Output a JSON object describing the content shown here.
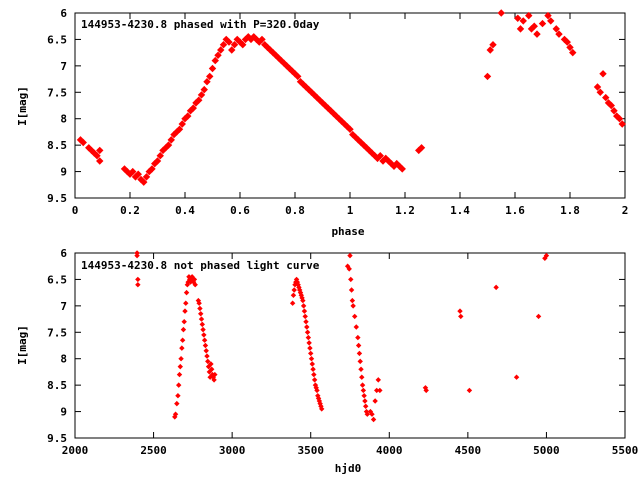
{
  "chart_data": [
    {
      "type": "scatter",
      "title": "144953-4230.8 phased with P=320.0day",
      "xlabel": "phase",
      "ylabel": "I[mag]",
      "xlim": [
        0,
        2
      ],
      "ylim": [
        9.5,
        6
      ],
      "y_inverted": true,
      "xticks": [
        "0",
        "0.2",
        "0.4",
        "0.6",
        "0.8",
        "1",
        "1.2",
        "1.4",
        "1.6",
        "1.8",
        "2"
      ],
      "yticks": [
        "6",
        "6.5",
        "7",
        "7.5",
        "8",
        "8.5",
        "9",
        "9.5"
      ],
      "grid": false,
      "marker_color": "#ff0000",
      "series": [
        {
          "x": [
            0.02,
            0.03,
            0.05,
            0.06,
            0.07,
            0.08,
            0.09,
            0.09,
            0.18,
            0.19,
            0.2,
            0.21,
            0.22,
            0.23,
            0.24,
            0.25,
            0.26,
            0.27,
            0.28,
            0.29,
            0.3,
            0.31,
            0.32,
            0.33,
            0.34,
            0.35,
            0.36,
            0.37,
            0.38,
            0.39,
            0.4,
            0.41,
            0.42,
            0.43,
            0.44,
            0.45,
            0.46,
            0.47,
            0.48,
            0.49,
            0.5,
            0.51,
            0.52,
            0.53,
            0.54,
            0.55,
            0.56,
            0.57,
            0.58,
            0.59,
            0.6,
            0.61,
            0.62,
            0.63,
            0.64,
            0.65,
            0.66,
            0.67,
            0.68,
            0.69,
            0.7,
            0.71,
            0.72,
            0.73,
            0.74,
            0.75,
            0.76,
            0.77,
            0.78,
            0.79,
            0.8,
            0.81,
            0.82,
            0.83,
            0.84,
            0.85,
            0.86,
            0.87,
            0.88,
            0.89,
            0.9,
            0.91,
            0.92,
            0.93,
            0.94,
            0.95,
            0.96,
            0.97,
            0.98,
            0.99,
            1.0,
            1.01,
            1.02,
            1.03,
            1.04,
            1.05,
            1.06,
            1.07,
            1.08,
            1.09,
            1.1,
            1.11,
            1.12,
            1.13,
            1.14,
            1.15,
            1.16,
            1.17,
            1.18,
            1.19,
            1.25,
            1.26,
            1.5,
            1.51,
            1.52,
            1.55,
            1.61,
            1.62,
            1.63,
            1.65,
            1.66,
            1.67,
            1.68,
            1.7,
            1.72,
            1.73,
            1.75,
            1.76,
            1.78,
            1.79,
            1.8,
            1.81,
            1.9,
            1.91,
            1.92,
            1.93,
            1.94,
            1.95,
            1.96,
            1.97,
            1.98,
            1.99
          ],
          "y": [
            8.4,
            8.45,
            8.55,
            8.6,
            8.65,
            8.7,
            8.6,
            8.8,
            8.95,
            9.0,
            9.05,
            9.0,
            9.1,
            9.05,
            9.15,
            9.2,
            9.1,
            9.0,
            8.95,
            8.85,
            8.8,
            8.7,
            8.6,
            8.55,
            8.5,
            8.4,
            8.3,
            8.25,
            8.2,
            8.1,
            8.0,
            7.95,
            7.85,
            7.8,
            7.7,
            7.65,
            7.55,
            7.45,
            7.3,
            7.2,
            7.05,
            6.9,
            6.8,
            6.7,
            6.6,
            6.5,
            6.55,
            6.7,
            6.6,
            6.5,
            6.55,
            6.6,
            6.5,
            6.45,
            6.5,
            6.45,
            6.5,
            6.55,
            6.5,
            6.6,
            6.65,
            6.7,
            6.75,
            6.8,
            6.85,
            6.9,
            6.95,
            7.0,
            7.05,
            7.1,
            7.15,
            7.2,
            7.3,
            7.35,
            7.4,
            7.45,
            7.5,
            7.55,
            7.6,
            7.65,
            7.7,
            7.75,
            7.8,
            7.85,
            7.9,
            7.95,
            8.0,
            8.05,
            8.1,
            8.15,
            8.2,
            8.3,
            8.35,
            8.4,
            8.45,
            8.5,
            8.55,
            8.6,
            8.65,
            8.7,
            8.75,
            8.7,
            8.8,
            8.75,
            8.8,
            8.85,
            8.9,
            8.85,
            8.9,
            8.95,
            8.6,
            8.55,
            7.2,
            6.7,
            6.6,
            6.0,
            6.1,
            6.3,
            6.15,
            6.05,
            6.3,
            6.25,
            6.4,
            6.2,
            6.05,
            6.15,
            6.3,
            6.4,
            6.5,
            6.55,
            6.65,
            6.75,
            7.4,
            7.5,
            7.15,
            7.6,
            7.7,
            7.75,
            7.85,
            7.95,
            8.0,
            8.1
          ]
        }
      ]
    },
    {
      "type": "scatter",
      "title": "144953-4230.8 not phased light curve",
      "xlabel": "hjd0",
      "ylabel": "I[mag]",
      "xlim": [
        2000,
        5500
      ],
      "ylim": [
        9.5,
        6
      ],
      "y_inverted": true,
      "xticks": [
        "2000",
        "2500",
        "3000",
        "3500",
        "4000",
        "4500",
        "5000",
        "5500"
      ],
      "yticks": [
        "6",
        "6.5",
        "7",
        "7.5",
        "8",
        "8.5",
        "9",
        "9.5"
      ],
      "grid": false,
      "marker_color": "#ff0000",
      "series": [
        {
          "x": [
            2395,
            2395,
            2400,
            2400,
            2635,
            2640,
            2648,
            2655,
            2660,
            2665,
            2670,
            2675,
            2680,
            2685,
            2690,
            2695,
            2700,
            2705,
            2710,
            2715,
            2720,
            2725,
            2730,
            2735,
            2740,
            2745,
            2750,
            2755,
            2760,
            2765,
            2785,
            2790,
            2795,
            2800,
            2805,
            2810,
            2815,
            2820,
            2825,
            2830,
            2835,
            2840,
            2845,
            2850,
            2855,
            2860,
            2865,
            2870,
            2875,
            2880,
            2885,
            2890,
            3385,
            3390,
            3395,
            3400,
            3405,
            3410,
            3415,
            3420,
            3425,
            3430,
            3435,
            3440,
            3445,
            3450,
            3455,
            3460,
            3465,
            3470,
            3475,
            3480,
            3485,
            3490,
            3495,
            3500,
            3505,
            3510,
            3515,
            3520,
            3525,
            3530,
            3535,
            3540,
            3545,
            3550,
            3555,
            3560,
            3565,
            3570,
            3735,
            3745,
            3750,
            3755,
            3760,
            3765,
            3770,
            3780,
            3790,
            3800,
            3805,
            3810,
            3815,
            3820,
            3825,
            3830,
            3835,
            3840,
            3845,
            3850,
            3855,
            3860,
            3880,
            3890,
            3900,
            3910,
            3920,
            3930,
            3940,
            4230,
            4235,
            4450,
            4455,
            4510,
            4680,
            4810,
            4950,
            4990,
            5000
          ],
          "y": [
            6.0,
            6.05,
            6.5,
            6.6,
            9.1,
            9.05,
            8.85,
            8.7,
            8.5,
            8.3,
            8.15,
            8.0,
            7.8,
            7.65,
            7.45,
            7.3,
            7.1,
            6.95,
            6.75,
            6.6,
            6.55,
            6.45,
            6.5,
            6.55,
            6.5,
            6.45,
            6.5,
            6.55,
            6.5,
            6.6,
            6.9,
            6.95,
            7.05,
            7.15,
            7.25,
            7.35,
            7.45,
            7.55,
            7.65,
            7.75,
            7.85,
            7.95,
            8.05,
            8.15,
            8.25,
            8.35,
            8.1,
            8.2,
            8.3,
            8.35,
            8.4,
            8.3,
            6.95,
            6.8,
            6.7,
            6.6,
            6.55,
            6.5,
            6.55,
            6.6,
            6.65,
            6.7,
            6.75,
            6.8,
            6.85,
            6.9,
            7.0,
            7.1,
            7.2,
            7.3,
            7.4,
            7.5,
            7.6,
            7.7,
            7.8,
            7.9,
            8.0,
            8.1,
            8.2,
            8.3,
            8.4,
            8.5,
            8.55,
            8.6,
            8.7,
            8.75,
            8.8,
            8.85,
            8.9,
            8.95,
            6.25,
            6.3,
            6.05,
            6.5,
            6.7,
            6.9,
            7.0,
            7.2,
            7.4,
            7.6,
            7.75,
            7.9,
            8.05,
            8.2,
            8.35,
            8.5,
            8.6,
            8.7,
            8.8,
            8.9,
            9.0,
            9.05,
            9.0,
            9.05,
            9.15,
            8.8,
            8.6,
            8.4,
            8.6,
            8.55,
            8.6,
            7.1,
            7.2,
            8.6,
            6.65,
            8.35,
            7.2,
            6.1,
            6.05
          ]
        }
      ]
    }
  ]
}
